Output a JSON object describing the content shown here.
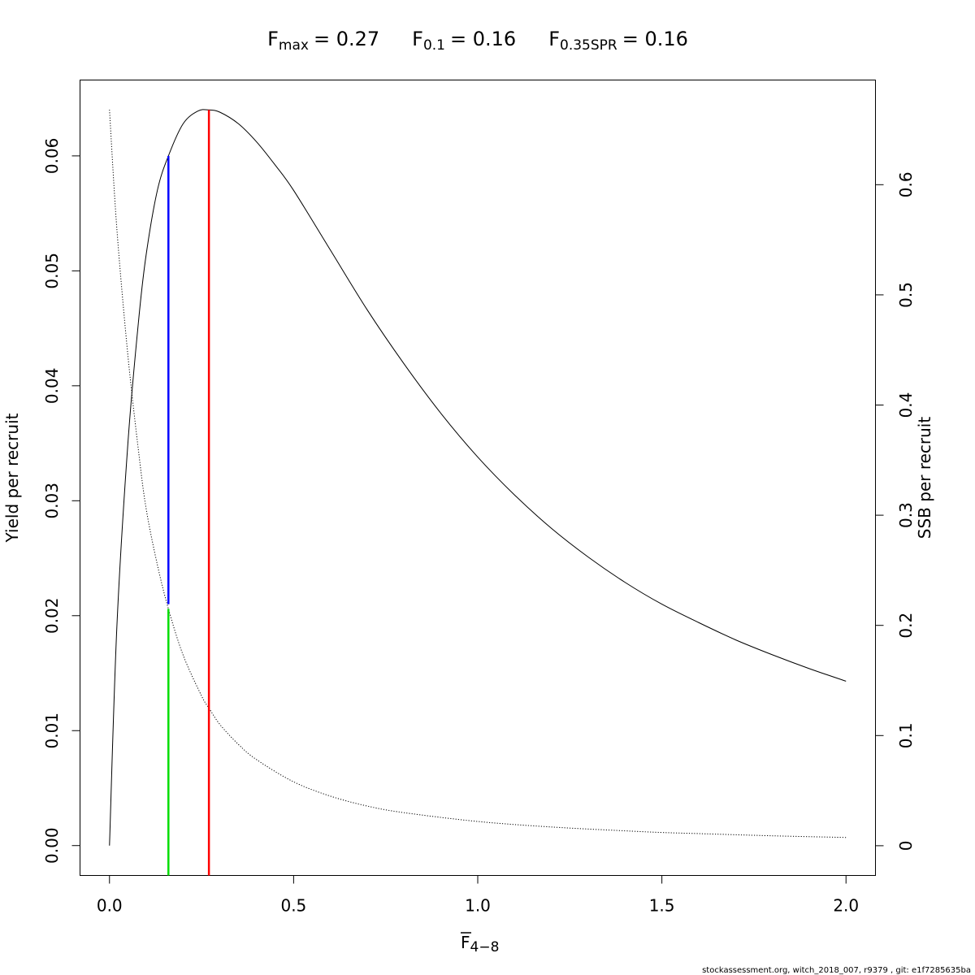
{
  "chart_data": {
    "type": "line",
    "title": {
      "fmax": {
        "symbol": "F",
        "sub": "max",
        "value": "= 0.27"
      },
      "f01": {
        "symbol": "F",
        "sub": "0.1",
        "value": "= 0.16"
      },
      "f035spr": {
        "symbol": "F",
        "sub": "0.35SPR",
        "value": "= 0.16"
      }
    },
    "xlabel": {
      "symbol": "F",
      "sub": "4−8"
    },
    "ylabel_left": "Yield per recruit",
    "ylabel_right": "SSB per recruit",
    "xlim": [
      -0.08,
      2.08
    ],
    "ylim_left": [
      -0.0026,
      0.0666
    ],
    "ylim_right": [
      -0.027,
      0.695
    ],
    "x_ticks": [
      0,
      0.5,
      1,
      1.5,
      2
    ],
    "x_tick_labels": [
      "0.0",
      "0.5",
      "1.0",
      "1.5",
      "2.0"
    ],
    "y_left_ticks": [
      0,
      0.01,
      0.02,
      0.03,
      0.04,
      0.05,
      0.06
    ],
    "y_left_tick_labels": [
      "0.00",
      "0.01",
      "0.02",
      "0.03",
      "0.04",
      "0.05",
      "0.06"
    ],
    "y_right_ticks": [
      0,
      0.1,
      0.2,
      0.3,
      0.4,
      0.5,
      0.6
    ],
    "y_right_tick_labels": [
      "0",
      "0.1",
      "0.2",
      "0.3",
      "0.4",
      "0.5",
      "0.6"
    ],
    "series": [
      {
        "axis": "left",
        "style": "solid",
        "color": "#000000",
        "x": [
          0,
          0.02,
          0.05,
          0.08,
          0.1,
          0.13,
          0.16,
          0.2,
          0.24,
          0.27,
          0.3,
          0.35,
          0.4,
          0.45,
          0.5,
          0.6,
          0.7,
          0.8,
          0.9,
          1.0,
          1.1,
          1.2,
          1.3,
          1.4,
          1.5,
          1.6,
          1.7,
          1.8,
          1.9,
          2.0
        ],
        "values": [
          0.0,
          0.019,
          0.035,
          0.046,
          0.0515,
          0.057,
          0.06,
          0.0628,
          0.0639,
          0.064,
          0.0638,
          0.0628,
          0.0612,
          0.0592,
          0.057,
          0.0518,
          0.0466,
          0.0419,
          0.0376,
          0.0338,
          0.0305,
          0.0276,
          0.0251,
          0.0229,
          0.021,
          0.0194,
          0.0179,
          0.0166,
          0.0154,
          0.0143
        ]
      },
      {
        "axis": "right",
        "style": "dotted",
        "color": "#000000",
        "x": [
          0,
          0.02,
          0.05,
          0.08,
          0.1,
          0.13,
          0.16,
          0.2,
          0.25,
          0.27,
          0.3,
          0.35,
          0.4,
          0.5,
          0.6,
          0.7,
          0.8,
          1.0,
          1.2,
          1.4,
          1.5,
          1.6,
          1.8,
          2.0
        ],
        "values": [
          0.668,
          0.56,
          0.445,
          0.355,
          0.305,
          0.255,
          0.215,
          0.173,
          0.136,
          0.125,
          0.11,
          0.092,
          0.078,
          0.058,
          0.045,
          0.036,
          0.03,
          0.022,
          0.017,
          0.0135,
          0.012,
          0.011,
          0.009,
          0.0075
        ]
      }
    ],
    "reference_lines": [
      {
        "name": "fmax",
        "color": "#ff0000",
        "x": 0.27,
        "axis": "left",
        "y_from": "bottom",
        "y_to": 0.064
      },
      {
        "name": "f01",
        "color": "#0000ff",
        "x": 0.16,
        "axis": "left",
        "y_from": 0.021,
        "y_to": 0.06
      },
      {
        "name": "f035spr",
        "color": "#00dd00",
        "x": 0.16,
        "axis": "right",
        "y_from": "bottom",
        "y_to": 0.215
      }
    ]
  },
  "footer": "stockassessment.org, witch_2018_007, r9379 , git: e1f7285635ba"
}
